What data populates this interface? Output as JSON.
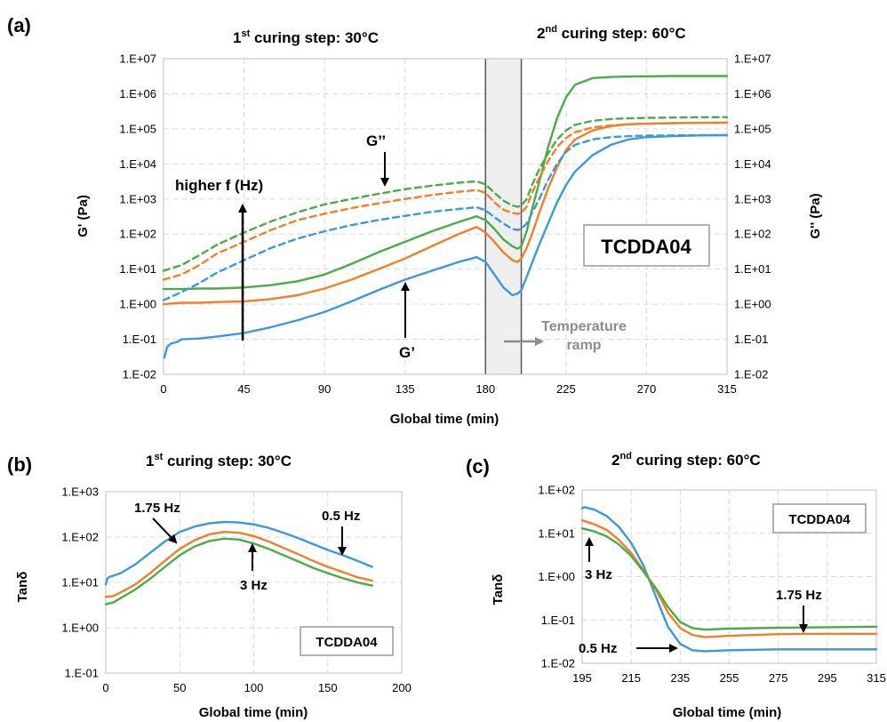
{
  "colors": {
    "blue": "#3a9ad9",
    "orange": "#f07f2a",
    "green": "#4aab47",
    "grey_text": "#8c8c8c"
  },
  "chart_data": [
    {
      "id": "a",
      "panel_letter": "(a)",
      "type": "line",
      "step_titles": [
        {
          "main": "1",
          "sup": "st",
          "rest": " curing step: 30°C"
        },
        {
          "main": "2",
          "sup": "nd",
          "rest": " curing step: 60°C"
        }
      ],
      "xlabel": "Global time (min)",
      "ylabel_left": "G' (Pa)",
      "ylabel_right": "G'' (Pa)",
      "xlim": [
        0,
        315
      ],
      "x_ticks": [
        0,
        45,
        90,
        135,
        180,
        225,
        270,
        315
      ],
      "ylim": [
        0.01,
        10000000
      ],
      "yscale": "log",
      "y_tick_labels": [
        "1.E-02",
        "1.E-01",
        "1.E+00",
        "1.E+01",
        "1.E+02",
        "1.E+03",
        "1.E+04",
        "1.E+05",
        "1.E+06",
        "1.E+07"
      ],
      "grid": true,
      "shaded_region_x": [
        180,
        200
      ],
      "annotations": {
        "higher_f": "higher f (Hz)",
        "g_double_prime": "G’’",
        "g_prime": "G’",
        "sample_box": "TCDDA04",
        "ramp_line1": "Temperature",
        "ramp_line2": "ramp"
      },
      "series": [
        {
          "color": "blue",
          "style": "solid",
          "x": [
            0.5,
            2,
            4,
            6,
            8,
            10,
            20,
            30,
            45,
            60,
            75,
            90,
            105,
            120,
            135,
            150,
            165,
            175,
            180,
            185,
            190,
            195,
            198,
            200,
            203,
            206,
            210,
            215,
            220,
            225,
            230,
            240,
            250,
            260,
            270,
            285,
            300,
            315
          ],
          "y": [
            0.03,
            0.06,
            0.075,
            0.08,
            0.085,
            0.1,
            0.105,
            0.12,
            0.15,
            0.22,
            0.35,
            0.6,
            1.2,
            2.5,
            5,
            9,
            16,
            22,
            16,
            7,
            3,
            1.8,
            2,
            2.5,
            6,
            15,
            50,
            200,
            800,
            2500,
            6000,
            18000,
            35000,
            50000,
            58000,
            62000,
            65000,
            66000
          ]
        },
        {
          "color": "orange",
          "style": "solid",
          "x": [
            0,
            5,
            10,
            20,
            30,
            45,
            60,
            75,
            90,
            105,
            120,
            135,
            150,
            165,
            175,
            180,
            185,
            190,
            195,
            198,
            200,
            203,
            206,
            210,
            215,
            220,
            225,
            230,
            240,
            250,
            260,
            270,
            285,
            300,
            315
          ],
          "y": [
            1.0,
            1.05,
            1.1,
            1.1,
            1.15,
            1.2,
            1.4,
            1.8,
            2.8,
            5,
            10,
            20,
            45,
            100,
            160,
            110,
            60,
            30,
            18,
            16,
            20,
            40,
            100,
            400,
            2000,
            8000,
            25000,
            50000,
            90000,
            120000,
            135000,
            140000,
            145000,
            148000,
            150000
          ]
        },
        {
          "color": "green",
          "style": "solid",
          "x": [
            0,
            5,
            10,
            20,
            30,
            45,
            60,
            75,
            90,
            105,
            120,
            135,
            150,
            165,
            175,
            180,
            185,
            190,
            195,
            198,
            200,
            203,
            206,
            210,
            215,
            220,
            225,
            230,
            240,
            250,
            260,
            270,
            285,
            300,
            315
          ],
          "y": [
            2.7,
            2.7,
            2.7,
            2.8,
            2.8,
            3.0,
            3.5,
            4.5,
            7,
            14,
            30,
            60,
            120,
            220,
            320,
            250,
            140,
            70,
            45,
            38,
            45,
            120,
            500,
            3000,
            30000,
            200000,
            800000,
            1800000,
            2800000,
            3000000,
            3100000,
            3150000,
            3200000,
            3200000,
            3200000
          ]
        },
        {
          "color": "blue",
          "style": "dashed",
          "x": [
            0,
            10,
            20,
            30,
            45,
            60,
            75,
            90,
            105,
            120,
            135,
            150,
            165,
            175,
            180,
            185,
            190,
            195,
            198,
            200,
            203,
            206,
            210,
            215,
            220,
            225,
            230,
            240,
            250,
            260,
            270,
            285,
            300,
            315
          ],
          "y": [
            1.3,
            2.2,
            4,
            8,
            18,
            40,
            75,
            120,
            180,
            250,
            330,
            430,
            520,
            580,
            480,
            300,
            200,
            140,
            130,
            140,
            200,
            400,
            1000,
            3500,
            10000,
            22000,
            35000,
            50000,
            58000,
            62000,
            64000,
            65000,
            66000,
            66000
          ]
        },
        {
          "color": "orange",
          "style": "dashed",
          "x": [
            0,
            10,
            20,
            30,
            45,
            60,
            75,
            90,
            105,
            120,
            135,
            150,
            165,
            175,
            180,
            185,
            190,
            195,
            198,
            200,
            203,
            206,
            210,
            215,
            220,
            225,
            230,
            240,
            250,
            260,
            270,
            285,
            300,
            315
          ],
          "y": [
            5,
            7,
            13,
            28,
            60,
            130,
            250,
            380,
            550,
            750,
            1000,
            1300,
            1600,
            1800,
            1500,
            800,
            500,
            400,
            380,
            400,
            600,
            1500,
            4000,
            12000,
            30000,
            55000,
            80000,
            110000,
            125000,
            135000,
            140000,
            145000,
            148000,
            150000
          ]
        },
        {
          "color": "green",
          "style": "dashed",
          "x": [
            0,
            10,
            20,
            30,
            45,
            60,
            75,
            90,
            105,
            120,
            135,
            150,
            165,
            175,
            180,
            185,
            190,
            195,
            198,
            200,
            203,
            206,
            210,
            215,
            220,
            225,
            230,
            240,
            250,
            260,
            270,
            285,
            300,
            315
          ],
          "y": [
            9,
            13,
            25,
            50,
            110,
            230,
            420,
            700,
            1000,
            1400,
            1900,
            2400,
            2900,
            3200,
            2600,
            1500,
            900,
            650,
            600,
            650,
            1000,
            2500,
            7000,
            20000,
            50000,
            90000,
            130000,
            170000,
            190000,
            200000,
            205000,
            210000,
            215000,
            215000
          ]
        }
      ]
    },
    {
      "id": "b",
      "panel_letter": "(b)",
      "type": "line",
      "step_title": {
        "main": "1",
        "sup": "st",
        "rest": " curing step: 30°C"
      },
      "xlabel": "Global time (min)",
      "ylabel": "Tanδ",
      "xlim": [
        0,
        200
      ],
      "x_ticks": [
        0,
        50,
        100,
        150,
        200
      ],
      "ylim": [
        0.1,
        1000
      ],
      "yscale": "log",
      "y_tick_labels": [
        "1.E-01",
        "1.E+00",
        "1.E+01",
        "1.E+02",
        "1.E+03"
      ],
      "grid": true,
      "annotations": {
        "f_175": "1.75 Hz",
        "f_05": "0.5 Hz",
        "f_3": "3 Hz",
        "sample_box": "TCDDA04"
      },
      "series": [
        {
          "color": "blue",
          "style": "solid",
          "x": [
            0,
            1,
            2,
            5,
            10,
            20,
            30,
            40,
            50,
            60,
            70,
            80,
            90,
            100,
            110,
            120,
            130,
            140,
            150,
            160,
            170,
            180
          ],
          "y": [
            9,
            12,
            13,
            14,
            16,
            25,
            45,
            80,
            130,
            170,
            200,
            215,
            210,
            190,
            160,
            125,
            95,
            70,
            52,
            40,
            30,
            22
          ]
        },
        {
          "color": "orange",
          "style": "solid",
          "x": [
            0,
            5,
            10,
            20,
            30,
            40,
            50,
            60,
            70,
            80,
            90,
            100,
            110,
            120,
            130,
            140,
            150,
            160,
            170,
            180
          ],
          "y": [
            4.8,
            5,
            6,
            9,
            16,
            30,
            55,
            85,
            115,
            130,
            125,
            105,
            80,
            58,
            42,
            30,
            22,
            17,
            13,
            11
          ]
        },
        {
          "color": "green",
          "style": "solid",
          "x": [
            0,
            5,
            10,
            20,
            30,
            40,
            50,
            60,
            70,
            80,
            90,
            100,
            110,
            120,
            130,
            140,
            150,
            160,
            170,
            180
          ],
          "y": [
            3.3,
            3.6,
            4.5,
            7,
            12,
            22,
            40,
            62,
            82,
            92,
            88,
            72,
            55,
            40,
            29,
            21,
            16,
            12.5,
            10,
            8.5
          ]
        }
      ]
    },
    {
      "id": "c",
      "panel_letter": "(c)",
      "type": "line",
      "step_title": {
        "main": "2",
        "sup": "nd",
        "rest": " curing step: 60°C"
      },
      "xlabel": "Global time (min)",
      "ylabel": "Tanδ",
      "xlim": [
        195,
        315
      ],
      "x_ticks": [
        195,
        215,
        235,
        255,
        275,
        295,
        315
      ],
      "ylim": [
        0.01,
        100
      ],
      "yscale": "log",
      "y_tick_labels": [
        "1.E-02",
        "1.E-01",
        "1.E+00",
        "1.E+01",
        "1.E+02"
      ],
      "grid": true,
      "annotations": {
        "f_3": "3 Hz",
        "f_175": "1.75 Hz",
        "f_05": "0.5 Hz",
        "sample_box": "TCDDA04"
      },
      "series": [
        {
          "color": "blue",
          "style": "solid",
          "x": [
            195,
            196,
            200,
            205,
            210,
            215,
            220,
            225,
            230,
            235,
            240,
            245,
            255,
            275,
            295,
            315
          ],
          "y": [
            38,
            40,
            35,
            25,
            14,
            6,
            1.8,
            0.35,
            0.07,
            0.028,
            0.02,
            0.019,
            0.02,
            0.021,
            0.021,
            0.021
          ]
        },
        {
          "color": "orange",
          "style": "solid",
          "x": [
            195,
            200,
            205,
            210,
            215,
            220,
            225,
            230,
            235,
            240,
            245,
            255,
            275,
            295,
            315
          ],
          "y": [
            20,
            16,
            12,
            7,
            3.5,
            1.4,
            0.5,
            0.15,
            0.065,
            0.045,
            0.04,
            0.043,
            0.047,
            0.048,
            0.048
          ]
        },
        {
          "color": "green",
          "style": "solid",
          "x": [
            195,
            200,
            205,
            210,
            215,
            220,
            225,
            230,
            235,
            240,
            245,
            255,
            275,
            295,
            315
          ],
          "y": [
            13,
            11,
            8.5,
            5.5,
            3,
            1.3,
            0.55,
            0.2,
            0.09,
            0.065,
            0.06,
            0.063,
            0.066,
            0.068,
            0.07
          ]
        }
      ]
    }
  ]
}
